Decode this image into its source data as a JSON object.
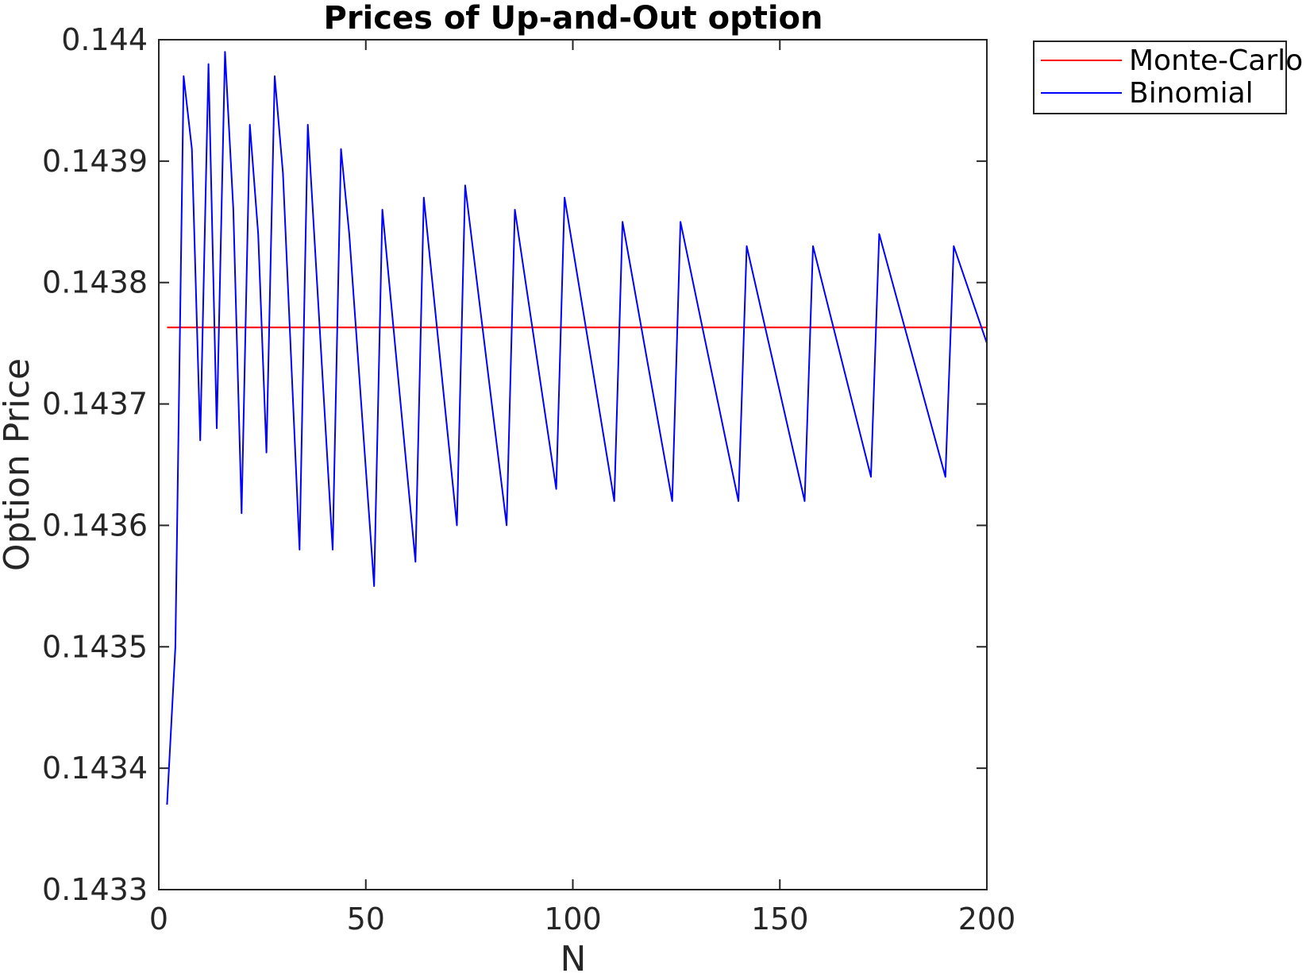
{
  "chart_data": {
    "type": "line",
    "title": "Prices of Up-and-Out option",
    "xlabel": "N",
    "ylabel": "Option Price",
    "xlim": [
      0,
      200
    ],
    "ylim": [
      0.1433,
      0.144
    ],
    "xticks": [
      0,
      50,
      100,
      150,
      200
    ],
    "xtick_labels": [
      "0",
      "50",
      "100",
      "150",
      "200"
    ],
    "yticks": [
      0.1433,
      0.1434,
      0.1435,
      0.1436,
      0.1437,
      0.1438,
      0.1439,
      0.144
    ],
    "ytick_labels": [
      "0.1433",
      "0.1434",
      "0.1435",
      "0.1436",
      "0.1437",
      "0.1438",
      "0.1439",
      "0.144"
    ],
    "grid": false,
    "legend_position": "outside top-right",
    "series": [
      {
        "name": "Monte-Carlo",
        "color": "#ff0000",
        "x": [
          2,
          200
        ],
        "y": [
          0.143763,
          0.143763
        ]
      },
      {
        "name": "Binomial",
        "color": "#0000ff",
        "x": [
          2,
          4,
          6,
          8,
          10,
          12,
          14,
          16,
          18,
          20,
          22,
          24,
          26,
          28,
          30,
          34,
          36,
          42,
          44,
          46,
          52,
          54,
          62,
          64,
          72,
          74,
          84,
          86,
          96,
          98,
          110,
          112,
          124,
          126,
          140,
          142,
          156,
          158,
          172,
          174,
          190,
          192,
          200
        ],
        "y": [
          0.14337,
          0.1435,
          0.14397,
          0.14391,
          0.14367,
          0.14398,
          0.14368,
          0.14399,
          0.14386,
          0.14361,
          0.14393,
          0.14384,
          0.14366,
          0.14397,
          0.14389,
          0.14358,
          0.14393,
          0.14358,
          0.14391,
          0.14384,
          0.14355,
          0.14386,
          0.14357,
          0.14387,
          0.1436,
          0.14388,
          0.1436,
          0.14386,
          0.14363,
          0.14387,
          0.14362,
          0.14385,
          0.14362,
          0.14385,
          0.14362,
          0.14383,
          0.14362,
          0.14383,
          0.14364,
          0.14384,
          0.14364,
          0.14383,
          0.14375
        ]
      }
    ]
  }
}
